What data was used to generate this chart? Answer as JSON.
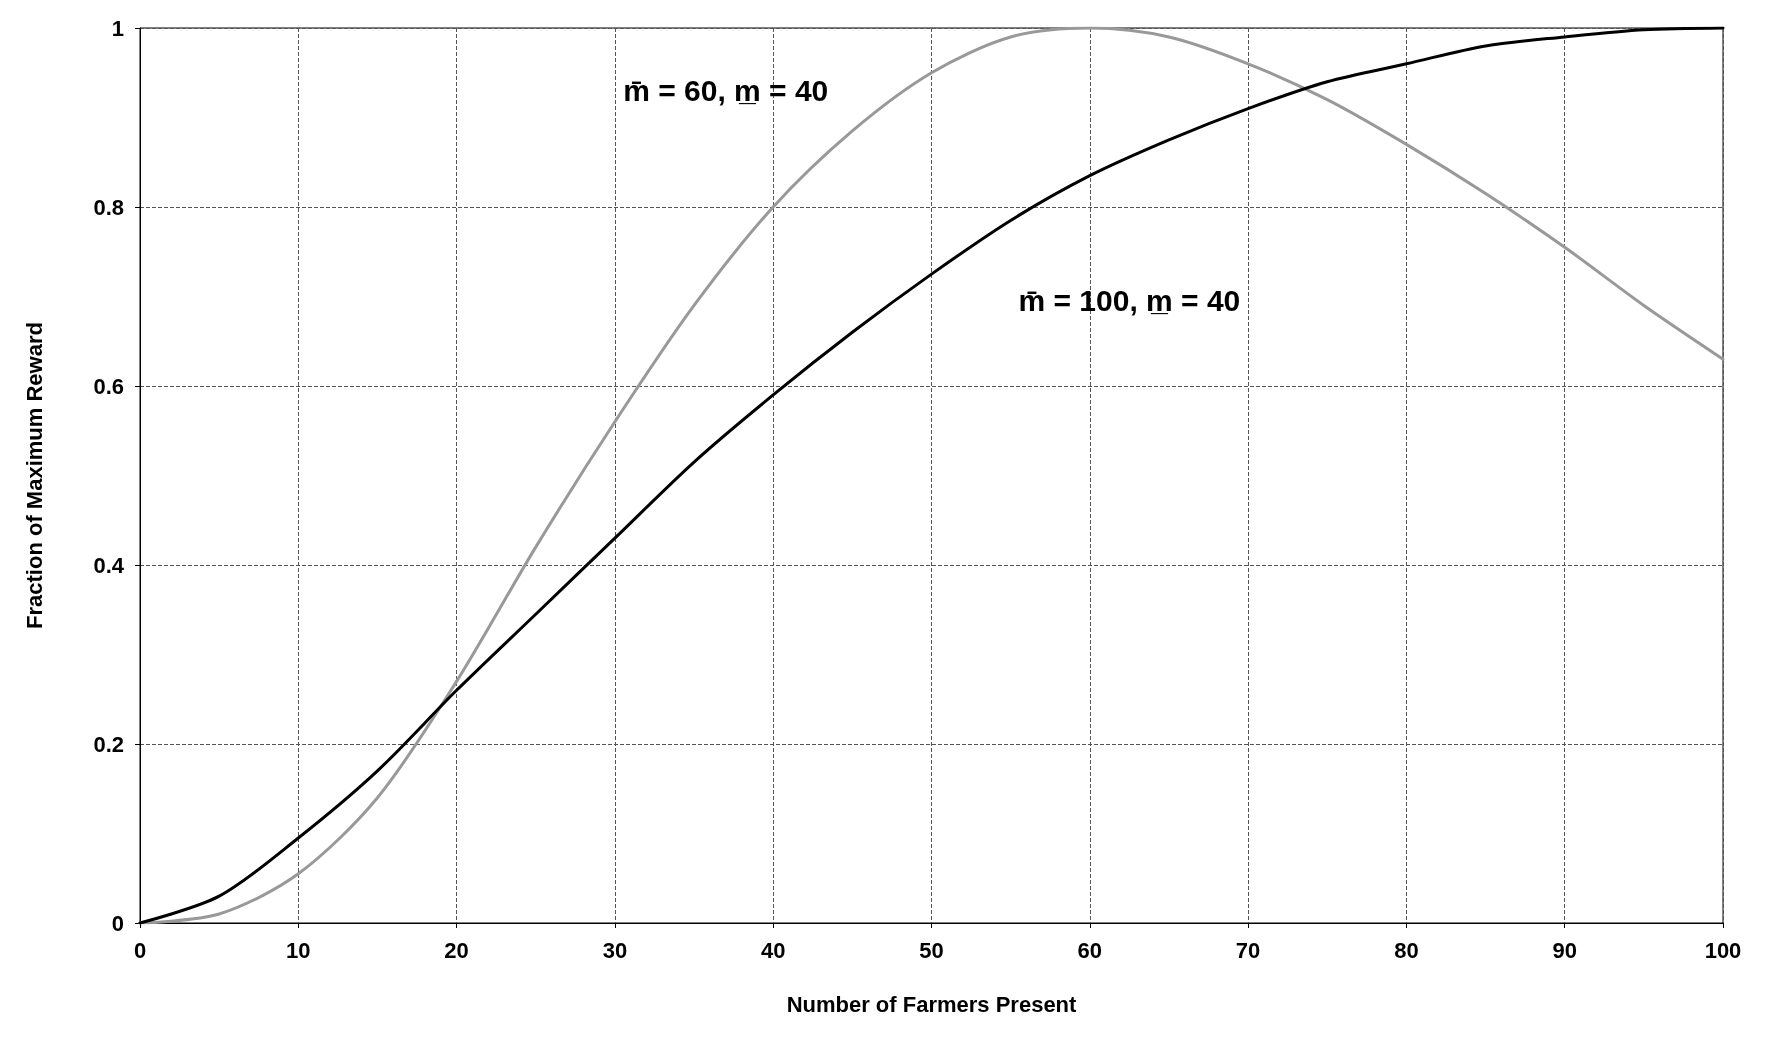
{
  "chart_data": {
    "type": "line",
    "xlabel": "Number of Farmers Present",
    "ylabel": "Fraction of Maximum Reward",
    "xlim": [
      0,
      100
    ],
    "xticks": [
      0,
      10,
      20,
      30,
      40,
      50,
      60,
      70,
      80,
      90,
      100
    ],
    "ylim": [
      0,
      1
    ],
    "yticks": [
      0,
      0.2,
      0.4,
      0.6,
      0.8,
      1
    ],
    "grid": true,
    "marker": "none",
    "line_style": "solid",
    "x": [
      0,
      5,
      10,
      15,
      20,
      25,
      30,
      35,
      40,
      45,
      50,
      55,
      60,
      65,
      70,
      75,
      80,
      85,
      90,
      95,
      100
    ],
    "series": [
      {
        "name": "m̄ = 60, m̲ = 40",
        "color": "#999999",
        "values": [
          0,
          0.01,
          0.055,
          0.14,
          0.27,
          0.42,
          0.56,
          0.69,
          0.8,
          0.885,
          0.95,
          0.99,
          1,
          0.99,
          0.96,
          0.92,
          0.87,
          0.815,
          0.755,
          0.69,
          0.63
        ]
      },
      {
        "name": "m̄ = 100, m̲ = 40",
        "color": "#000000",
        "values": [
          0,
          0.03,
          0.095,
          0.17,
          0.26,
          0.345,
          0.43,
          0.515,
          0.59,
          0.66,
          0.725,
          0.785,
          0.835,
          0.875,
          0.91,
          0.94,
          0.96,
          0.98,
          0.99,
          0.998,
          1
        ]
      }
    ]
  }
}
